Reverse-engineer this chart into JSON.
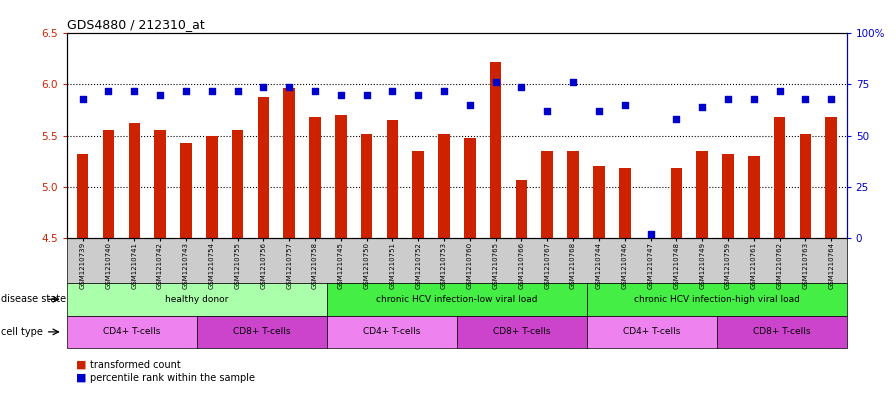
{
  "title": "GDS4880 / 212310_at",
  "samples": [
    "GSM1210739",
    "GSM1210740",
    "GSM1210741",
    "GSM1210742",
    "GSM1210743",
    "GSM1210754",
    "GSM1210755",
    "GSM1210756",
    "GSM1210757",
    "GSM1210758",
    "GSM1210745",
    "GSM1210750",
    "GSM1210751",
    "GSM1210752",
    "GSM1210753",
    "GSM1210760",
    "GSM1210765",
    "GSM1210766",
    "GSM1210767",
    "GSM1210768",
    "GSM1210744",
    "GSM1210746",
    "GSM1210747",
    "GSM1210748",
    "GSM1210749",
    "GSM1210759",
    "GSM1210761",
    "GSM1210762",
    "GSM1210763",
    "GSM1210764"
  ],
  "bar_values": [
    5.32,
    5.55,
    5.62,
    5.55,
    5.43,
    5.5,
    5.55,
    5.88,
    5.97,
    5.68,
    5.7,
    5.52,
    5.65,
    5.35,
    5.52,
    5.48,
    6.22,
    5.07,
    5.35,
    5.35,
    5.2,
    5.18,
    4.48,
    5.18,
    5.35,
    5.32,
    5.3,
    5.68,
    5.52,
    5.68
  ],
  "percentile_values": [
    68,
    72,
    72,
    70,
    72,
    72,
    72,
    74,
    74,
    72,
    70,
    70,
    72,
    70,
    72,
    65,
    76,
    74,
    62,
    76,
    62,
    65,
    2,
    58,
    64,
    68,
    68,
    72,
    68,
    68
  ],
  "ylim_left": [
    4.5,
    6.5
  ],
  "ylim_right": [
    0,
    100
  ],
  "yticks_left": [
    4.5,
    5.0,
    5.5,
    6.0,
    6.5
  ],
  "ytick_labels_right": [
    "0",
    "25",
    "50",
    "75",
    "100%"
  ],
  "ytick_values_right": [
    0,
    25,
    50,
    75,
    100
  ],
  "bar_color": "#CC2200",
  "dot_color": "#0000CC",
  "legend_bar_label": "transformed count",
  "legend_dot_label": "percentile rank within the sample",
  "disease_state_label": "disease state",
  "cell_type_label": "cell type",
  "n_samples": 30,
  "disease_groups": [
    {
      "label": "healthy donor",
      "start": 0,
      "end": 10,
      "color": "#AAFFAA"
    },
    {
      "label": "chronic HCV infection-low viral load",
      "start": 10,
      "end": 20,
      "color": "#44EE44"
    },
    {
      "label": "chronic HCV infection-high viral load",
      "start": 20,
      "end": 30,
      "color": "#44EE44"
    }
  ],
  "cell_groups": [
    {
      "label": "CD4+ T-cells",
      "start": 0,
      "end": 5,
      "color": "#EE82EE"
    },
    {
      "label": "CD8+ T-cells",
      "start": 5,
      "end": 10,
      "color": "#CC44CC"
    },
    {
      "label": "CD4+ T-cells",
      "start": 10,
      "end": 15,
      "color": "#EE82EE"
    },
    {
      "label": "CD8+ T-cells",
      "start": 15,
      "end": 20,
      "color": "#CC44CC"
    },
    {
      "label": "CD4+ T-cells",
      "start": 20,
      "end": 25,
      "color": "#EE82EE"
    },
    {
      "label": "CD8+ T-cells",
      "start": 25,
      "end": 30,
      "color": "#CC44CC"
    }
  ]
}
